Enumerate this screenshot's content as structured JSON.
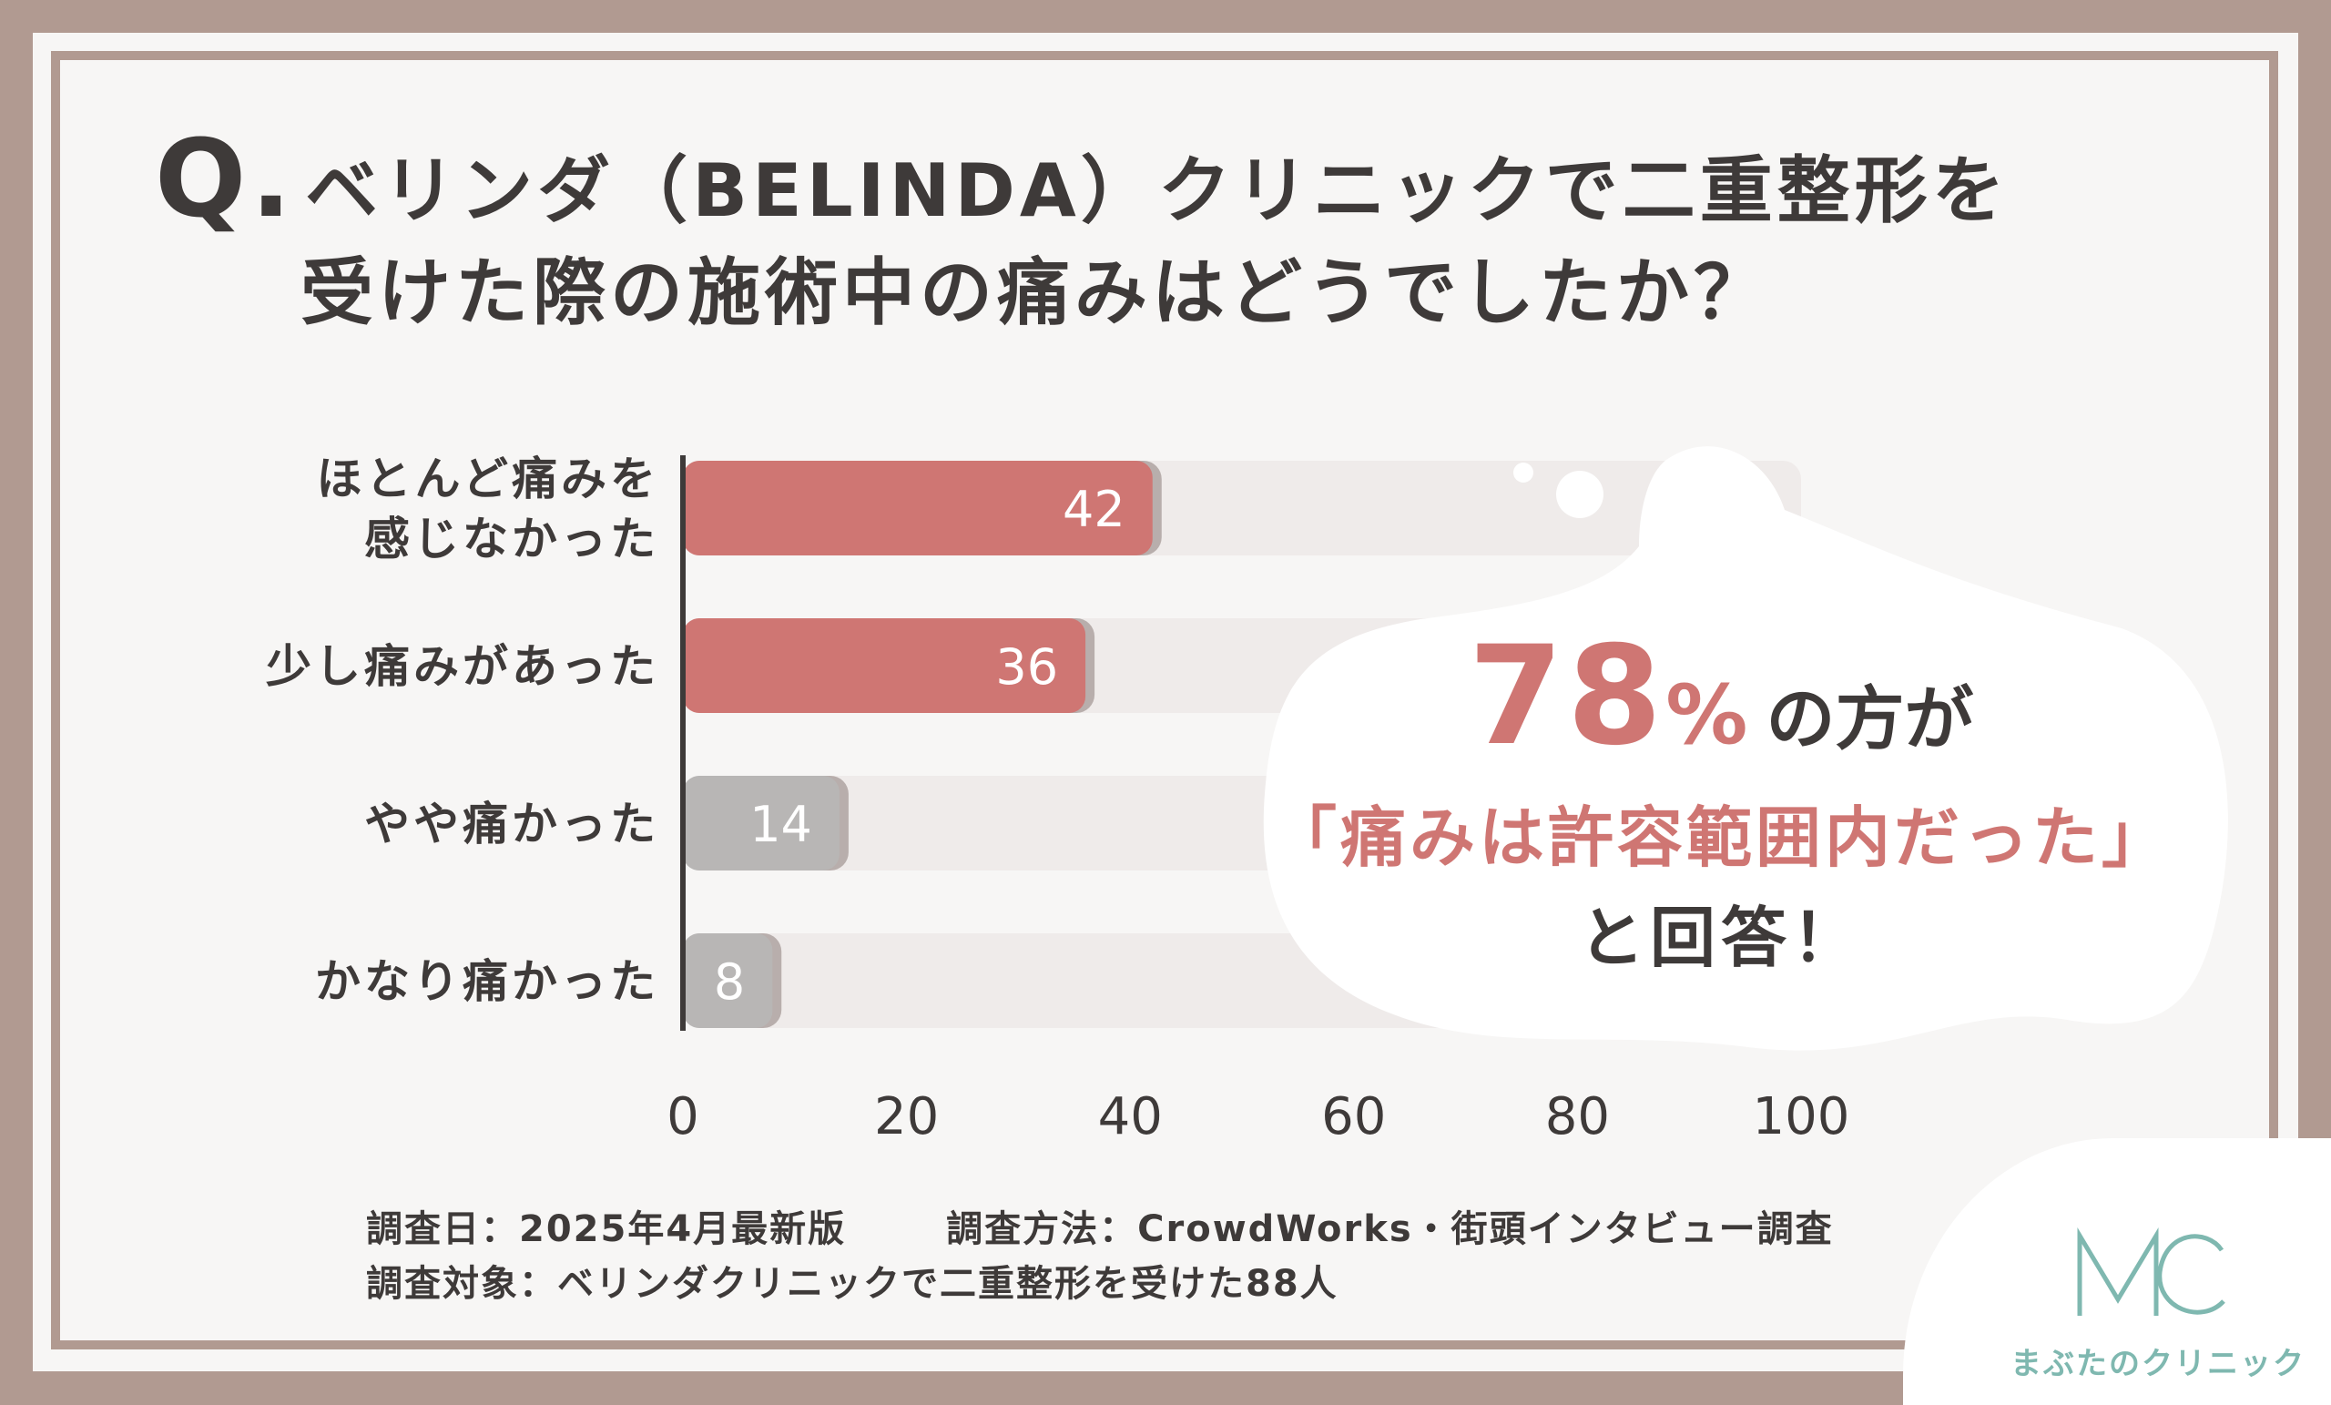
{
  "title": {
    "q_mark": "Q.",
    "line1": "ベリンダ（BELINDA）クリニックで二重整形を",
    "line2": "受けた際の施術中の痛みはどうでしたか？"
  },
  "chart_data": {
    "type": "bar",
    "orientation": "horizontal",
    "categories": [
      [
        "ほとんど痛みを",
        "感じなかった"
      ],
      [
        "少し痛みがあった"
      ],
      [
        "やや痛かった"
      ],
      [
        "かなり痛かった"
      ]
    ],
    "values": [
      42,
      36,
      14,
      8
    ],
    "value_labels": [
      "42",
      "36",
      "14",
      "8"
    ],
    "xlim": [
      0,
      100
    ],
    "xticks": [
      "0",
      "20",
      "40",
      "60",
      "80",
      "100"
    ],
    "grid": false,
    "colors": {
      "highlight": "#cf7673",
      "muted": "#b8b6b5",
      "track": "#efebea"
    },
    "highlight_categories": [
      0,
      1
    ]
  },
  "callout": {
    "percent": "78",
    "percent_unit": "%",
    "line1_suffix": "の方が",
    "line2": "「痛みは許容範囲内だった」",
    "line3": "と回答！"
  },
  "footer": {
    "date": "調査日：2025年4月最新版",
    "method": "調査方法：CrowdWorks・街頭インタビュー調査",
    "subject": "調査対象：ベリンダクリニックで二重整形を受けた88人"
  },
  "logo": {
    "mark": "MC",
    "name": "まぶたのクリニック",
    "color": "#7fb8b0"
  },
  "colors": {
    "frame": "#b19a91",
    "text": "#3e3a39",
    "accent": "#cf7673"
  }
}
